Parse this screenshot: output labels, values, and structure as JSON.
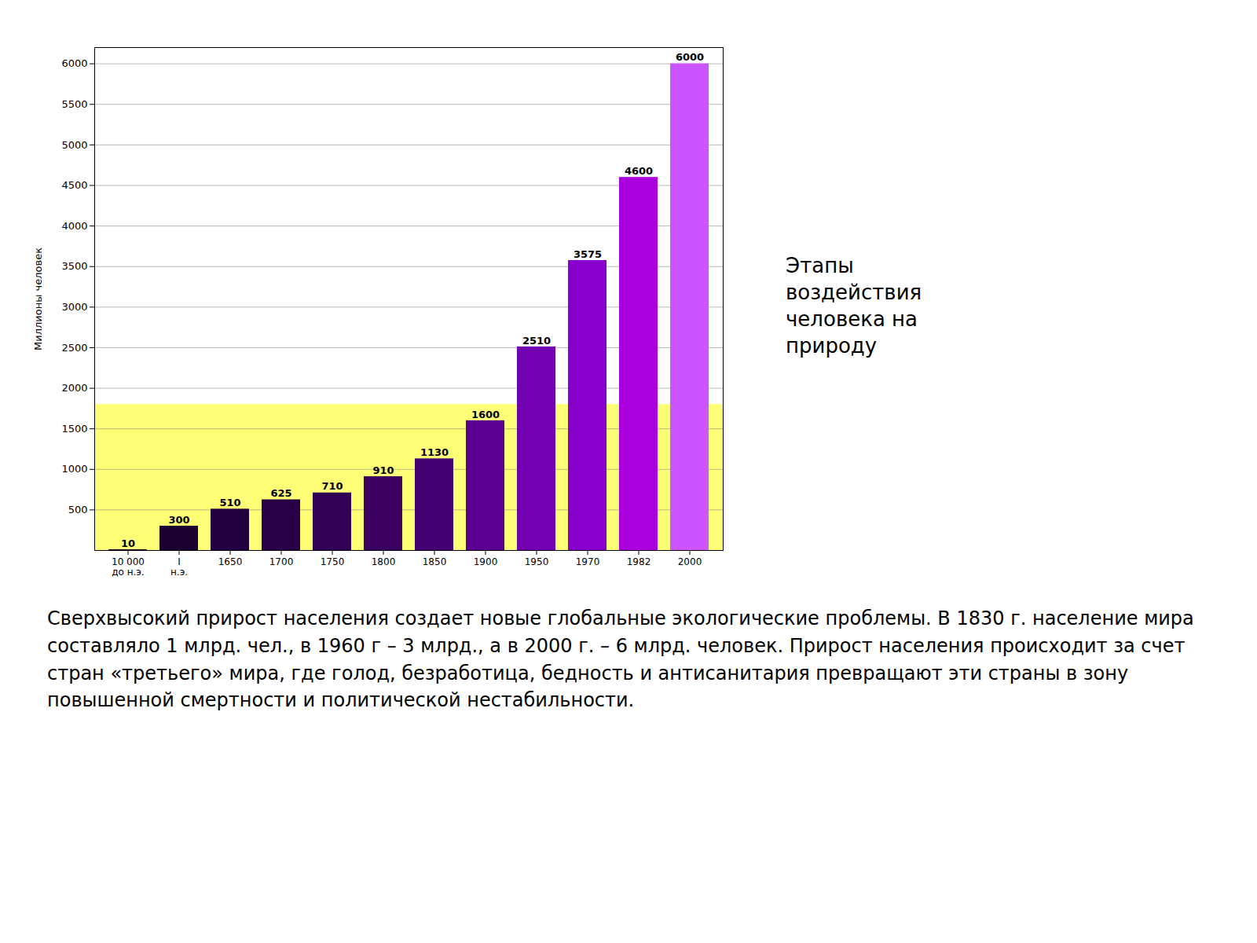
{
  "chart_data": {
    "type": "bar",
    "categories": [
      "10 000\nдо н.э.",
      "I\nн.э.",
      "1650",
      "1700",
      "1750",
      "1800",
      "1850",
      "1900",
      "1950",
      "1970",
      "1982",
      "2000"
    ],
    "values": [
      10,
      300,
      510,
      625,
      710,
      910,
      1130,
      1600,
      2510,
      3575,
      4600,
      6000
    ],
    "colors": [
      "#1a0030",
      "#1a0030",
      "#220040",
      "#280048",
      "#300055",
      "#3a0060",
      "#420070",
      "#5a0090",
      "#7000b0",
      "#8800cc",
      "#aa00dd",
      "#cc55ff"
    ],
    "ylabel": "Миллионы человек",
    "ylim": [
      0,
      6200
    ],
    "yticks": [
      500,
      1000,
      1500,
      2000,
      2500,
      3000,
      3500,
      4000,
      4500,
      5000,
      5500,
      6000
    ],
    "grid": true,
    "data_labels": true,
    "band": {
      "from": 0,
      "to": 1800,
      "color": "#ffff77"
    },
    "annotations": [
      "Этапы\nвоздействия\nчеловека на\nприроду",
      "Сверхвысокий прирост населения создает новые глобальные экологические проблемы. В 1830 г. население мира составляло 1 млрд. чел., в 1960 г – 3 млрд., а в 2000 г. – 6 млрд. человек. Прирост населения происходит за счет стран «третьего» мира, где голод, безработица, бедность и антисанитария превращают эти страны в зону повышенной смертности и политической нестабильности."
    ]
  }
}
